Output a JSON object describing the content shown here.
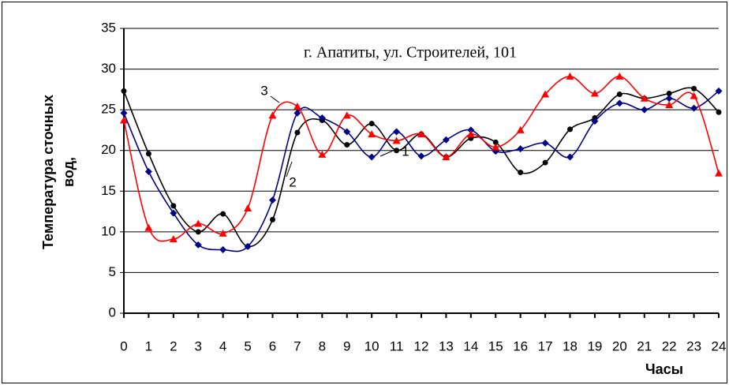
{
  "chart_data": {
    "type": "line",
    "title": "г. Апатиты, ул. Строителей, 101",
    "ylabel": [
      "Температура сточных",
      "вод,"
    ],
    "xlabel": "Часы",
    "annotations": [
      "1",
      "2",
      "3"
    ],
    "x": [
      0,
      1,
      2,
      3,
      4,
      5,
      6,
      7,
      8,
      9,
      10,
      11,
      12,
      13,
      14,
      15,
      16,
      17,
      18,
      19,
      20,
      21,
      22,
      23,
      24
    ],
    "xlim": [
      0,
      24
    ],
    "xticks": [
      0,
      1,
      2,
      3,
      4,
      5,
      6,
      7,
      8,
      9,
      10,
      11,
      12,
      13,
      14,
      15,
      16,
      17,
      18,
      19,
      20,
      21,
      22,
      23,
      24
    ],
    "ylim": [
      0,
      35
    ],
    "yticks": [
      0,
      5,
      10,
      15,
      20,
      25,
      30,
      35
    ],
    "grid": true,
    "series": [
      {
        "color": "#000000",
        "marker": "circle",
        "values": [
          27.3,
          19.6,
          13.2,
          10.0,
          12.2,
          8.2,
          11.5,
          22.2,
          23.7,
          20.7,
          23.3,
          20.0,
          22.0,
          19.2,
          21.5,
          21.0,
          17.3,
          18.5,
          22.6,
          24.0,
          26.9,
          26.4,
          27.0,
          27.6,
          24.7
        ]
      },
      {
        "color": "#00008b",
        "marker": "diamond",
        "values": [
          24.6,
          17.4,
          12.3,
          8.4,
          7.8,
          8.2,
          13.9,
          24.6,
          24.0,
          22.3,
          19.2,
          22.3,
          19.3,
          21.3,
          22.5,
          19.9,
          20.2,
          20.9,
          19.2,
          23.6,
          25.8,
          25.0,
          26.4,
          25.2,
          27.3
        ]
      },
      {
        "color": "#ff0000",
        "marker": "triangle",
        "values": [
          23.7,
          10.5,
          9.1,
          11.0,
          9.8,
          12.9,
          24.3,
          25.4,
          19.5,
          24.3,
          22.0,
          21.2,
          22.0,
          19.2,
          22.0,
          20.4,
          22.5,
          26.9,
          29.1,
          27.0,
          29.1,
          26.4,
          25.6,
          26.7,
          17.2
        ]
      }
    ]
  }
}
